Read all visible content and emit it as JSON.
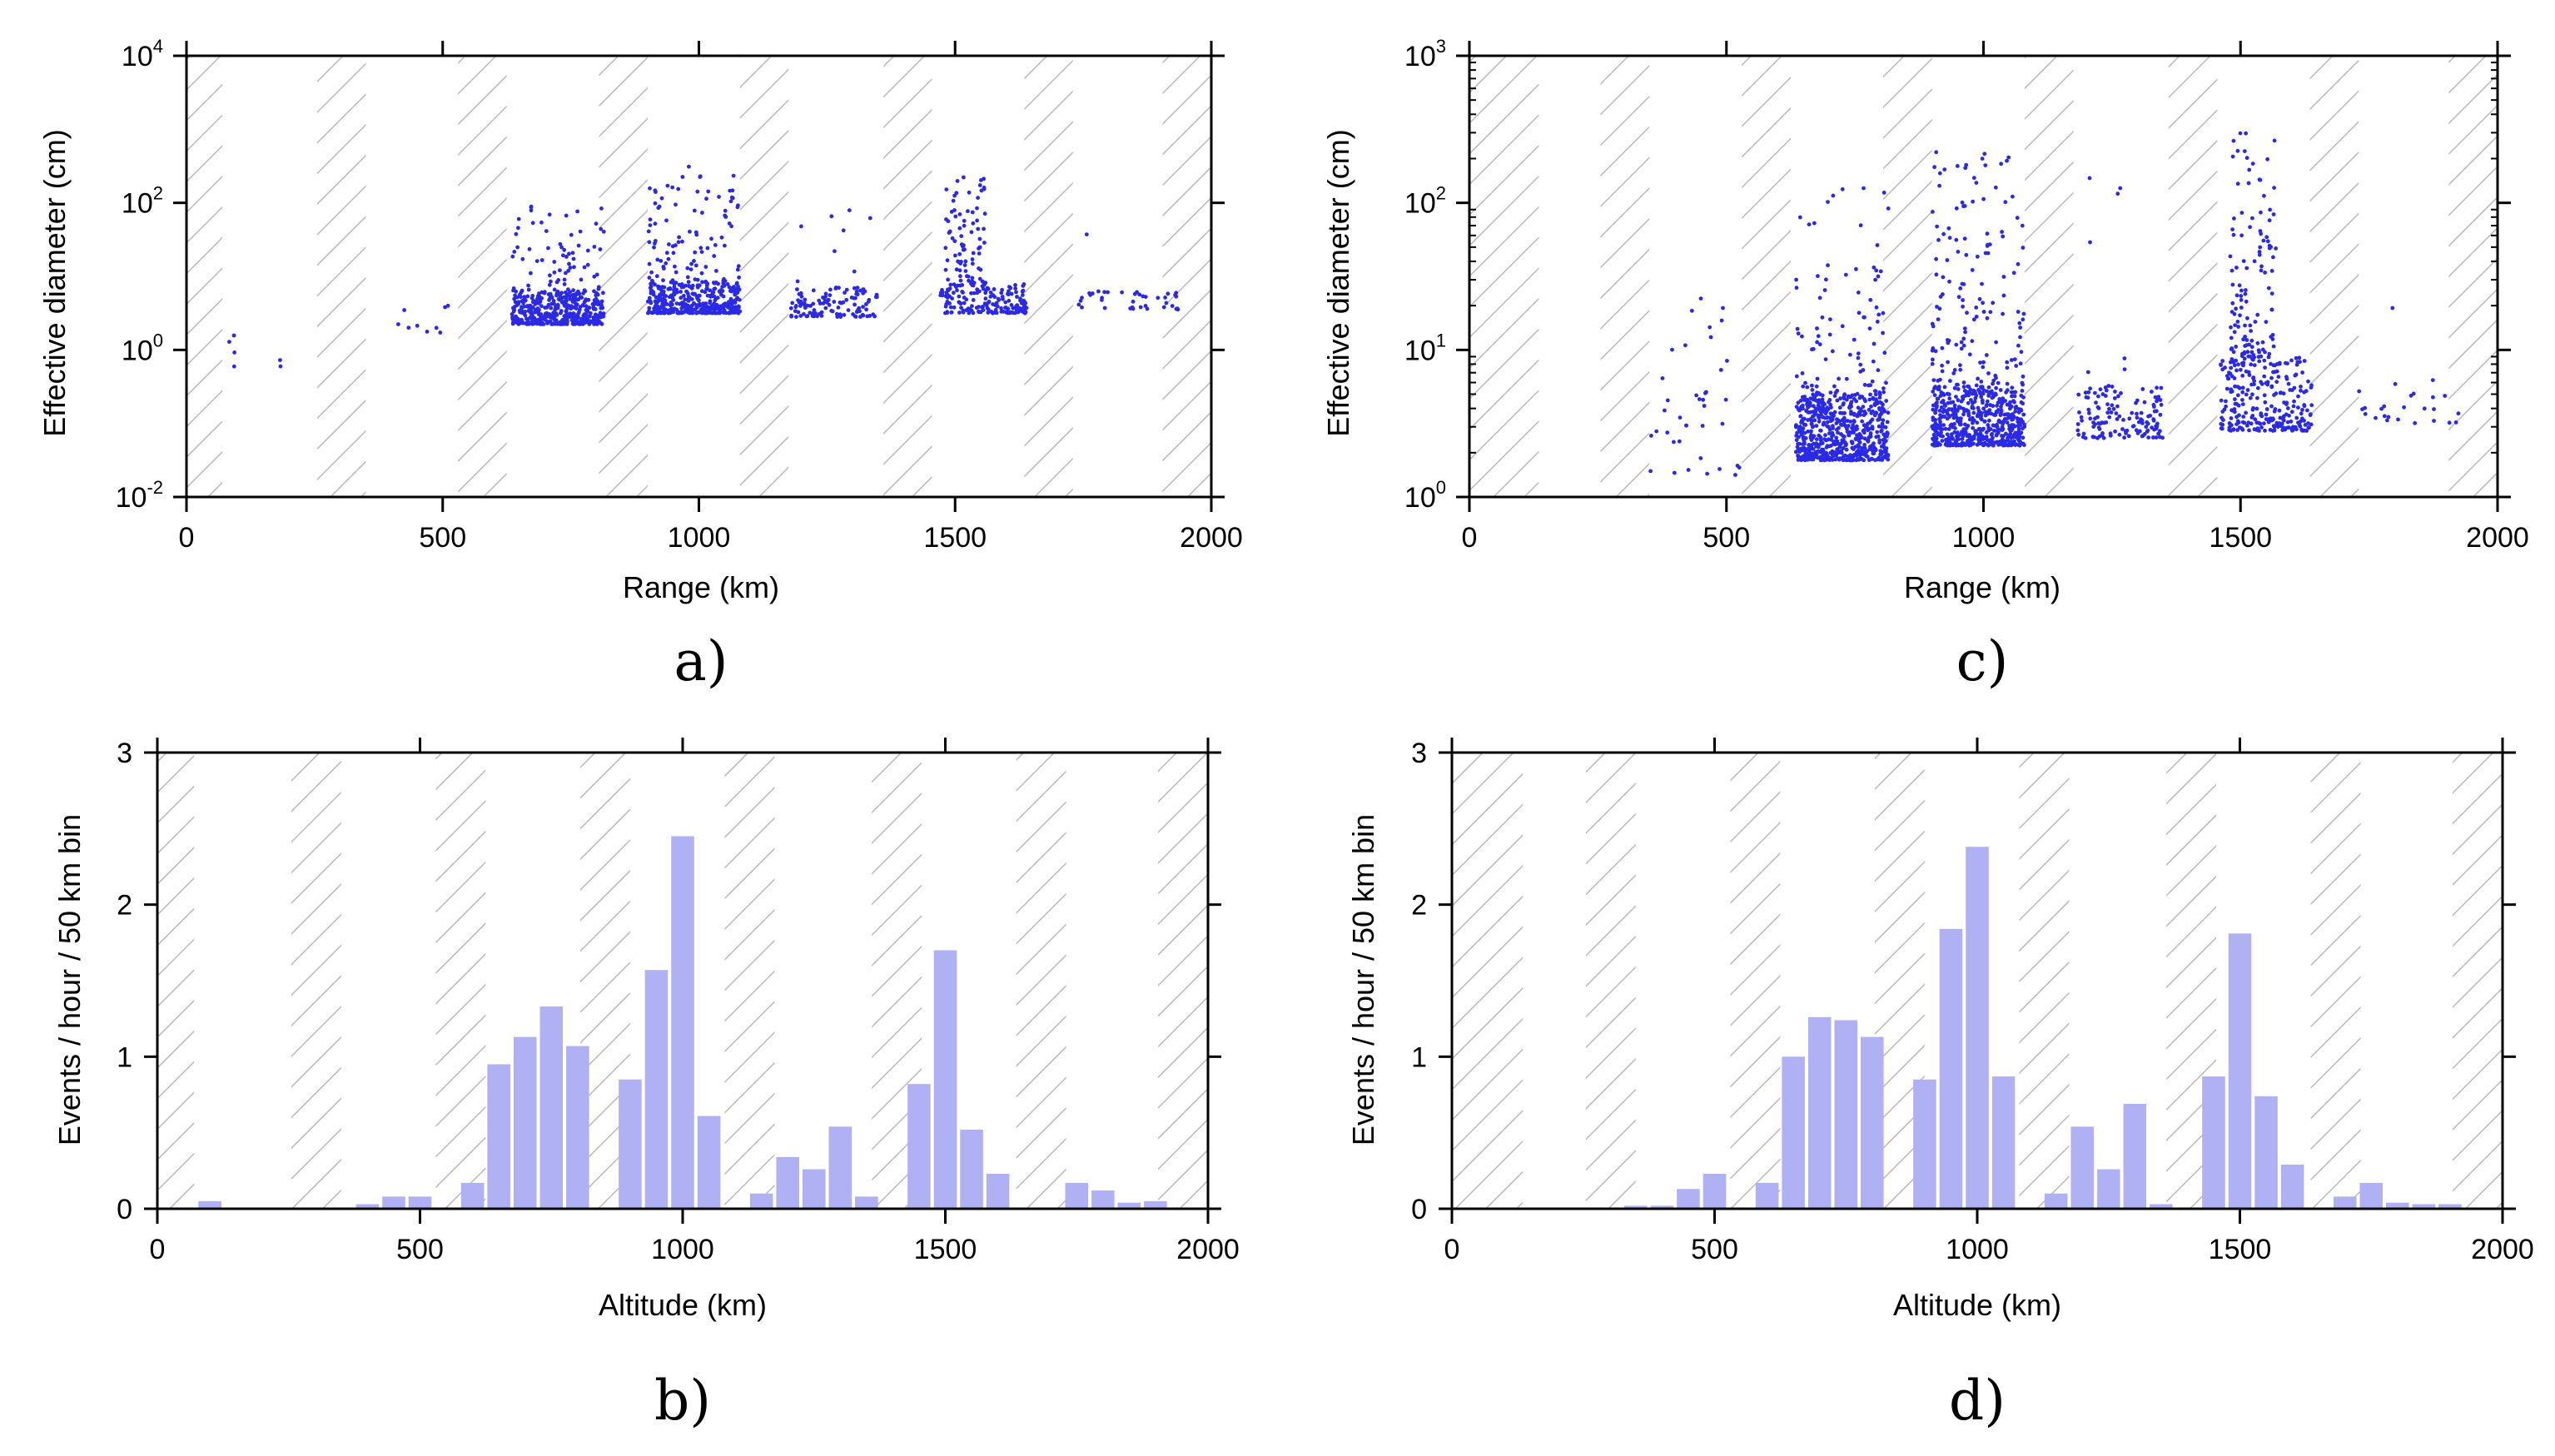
{
  "colors": {
    "scatter": "#2a2ae6",
    "bar": "#b0b0f4",
    "hatch": "#b9b9b9",
    "axis": "#000000"
  },
  "chart_data": [
    {
      "id": "a",
      "panel_label": "a)",
      "type": "scatter",
      "xlabel": "Range (km)",
      "ylabel": "Effective diameter (cm)",
      "xlim": [
        0,
        2000
      ],
      "ylim_log10": [
        -2,
        4
      ],
      "yscale": "log",
      "x_ticks": [
        "0",
        "500",
        "1000",
        "1500",
        "2000"
      ],
      "y_ticks": [
        {
          "base": "10",
          "exp": "-2"
        },
        {
          "base": "10",
          "exp": "0"
        },
        {
          "base": "10",
          "exp": "2"
        },
        {
          "base": "10",
          "exp": "4"
        }
      ],
      "hatched_x_ranges": [
        [
          0,
          70
        ],
        [
          255,
          350
        ],
        [
          530,
          625
        ],
        [
          805,
          900
        ],
        [
          1080,
          1175
        ],
        [
          1360,
          1455
        ],
        [
          1635,
          1730
        ],
        [
          1905,
          2000
        ]
      ],
      "clusters": [
        {
          "x": [
            80,
            100
          ],
          "logy": [
            -0.3,
            0.2
          ],
          "n": 4
        },
        {
          "x": [
            165,
            190
          ],
          "logy": [
            -0.25,
            -0.1
          ],
          "n": 2
        },
        {
          "x": [
            400,
            520
          ],
          "logy": [
            0.2,
            0.7
          ],
          "n": 9
        },
        {
          "x": [
            635,
            815
          ],
          "logy": [
            0.35,
            0.8
          ],
          "n": 420
        },
        {
          "x": [
            635,
            815
          ],
          "logy": [
            0.8,
            2.0
          ],
          "n": 70
        },
        {
          "x": [
            900,
            1080
          ],
          "logy": [
            0.5,
            0.95
          ],
          "n": 380
        },
        {
          "x": [
            900,
            1080
          ],
          "logy": [
            0.95,
            2.5
          ],
          "n": 90
        },
        {
          "x": [
            1180,
            1350
          ],
          "logy": [
            0.45,
            0.85
          ],
          "n": 110
        },
        {
          "x": [
            1180,
            1350
          ],
          "logy": [
            0.85,
            1.9
          ],
          "n": 8
        },
        {
          "x": [
            1470,
            1640
          ],
          "logy": [
            0.5,
            0.9
          ],
          "n": 170
        },
        {
          "x": [
            1480,
            1560
          ],
          "logy": [
            0.9,
            2.4
          ],
          "n": 80
        },
        {
          "x": [
            1740,
            1940
          ],
          "logy": [
            0.55,
            0.8
          ],
          "n": 40
        },
        {
          "x": [
            1750,
            1760
          ],
          "logy": [
            1.5,
            1.7
          ],
          "n": 1
        }
      ]
    },
    {
      "id": "c",
      "panel_label": "c)",
      "type": "scatter",
      "xlabel": "Range (km)",
      "ylabel": "Effective diameter (cm)",
      "xlim": [
        0,
        2000
      ],
      "ylim_log10": [
        0,
        3
      ],
      "yscale": "log",
      "x_ticks": [
        "0",
        "500",
        "1000",
        "1500",
        "2000"
      ],
      "y_ticks": [
        {
          "base": "10",
          "exp": "0"
        },
        {
          "base": "10",
          "exp": "1"
        },
        {
          "base": "10",
          "exp": "2"
        },
        {
          "base": "10",
          "exp": "3"
        }
      ],
      "hatched_x_ranges": [
        [
          0,
          135
        ],
        [
          255,
          350
        ],
        [
          530,
          625
        ],
        [
          805,
          900
        ],
        [
          1080,
          1175
        ],
        [
          1360,
          1455
        ],
        [
          1635,
          1730
        ],
        [
          1905,
          2000
        ]
      ],
      "clusters": [
        {
          "x": [
            350,
            525
          ],
          "logy": [
            0.15,
            1.2
          ],
          "n": 35
        },
        {
          "x": [
            380,
            500
          ],
          "logy": [
            1.2,
            1.8
          ],
          "n": 4
        },
        {
          "x": [
            635,
            815
          ],
          "logy": [
            0.25,
            0.7
          ],
          "n": 620
        },
        {
          "x": [
            635,
            815
          ],
          "logy": [
            0.7,
            2.1
          ],
          "n": 90
        },
        {
          "x": [
            900,
            1080
          ],
          "logy": [
            0.35,
            0.75
          ],
          "n": 560
        },
        {
          "x": [
            900,
            1080
          ],
          "logy": [
            0.75,
            2.35
          ],
          "n": 150
        },
        {
          "x": [
            1180,
            1350
          ],
          "logy": [
            0.4,
            0.75
          ],
          "n": 130
        },
        {
          "x": [
            1200,
            1280
          ],
          "logy": [
            0.75,
            2.3
          ],
          "n": 9
        },
        {
          "x": [
            1460,
            1640
          ],
          "logy": [
            0.45,
            0.95
          ],
          "n": 260
        },
        {
          "x": [
            1480,
            1570
          ],
          "logy": [
            0.95,
            2.5
          ],
          "n": 120
        },
        {
          "x": [
            1730,
            1940
          ],
          "logy": [
            0.5,
            0.8
          ],
          "n": 25
        },
        {
          "x": [
            1780,
            1800
          ],
          "logy": [
            1.2,
            1.3
          ],
          "n": 1
        }
      ]
    },
    {
      "id": "b",
      "panel_label": "b)",
      "type": "bar",
      "xlabel": "Altitude (km)",
      "ylabel": "Events / hour / 50 km bin",
      "xlim": [
        0,
        2000
      ],
      "ylim": [
        0,
        3
      ],
      "bin_width": 50,
      "x_ticks": [
        "0",
        "500",
        "1000",
        "1500",
        "2000"
      ],
      "y_ticks": [
        "0",
        "1",
        "2",
        "3"
      ],
      "hatched_x_ranges": [
        [
          0,
          70
        ],
        [
          255,
          350
        ],
        [
          530,
          625
        ],
        [
          805,
          900
        ],
        [
          1080,
          1175
        ],
        [
          1360,
          1455
        ],
        [
          1635,
          1730
        ],
        [
          1905,
          2000
        ]
      ],
      "bin_starts": [
        75,
        375,
        425,
        475,
        575,
        625,
        675,
        725,
        775,
        875,
        925,
        975,
        1025,
        1125,
        1175,
        1225,
        1275,
        1325,
        1425,
        1475,
        1525,
        1575,
        1725,
        1775,
        1825,
        1875
      ],
      "values": [
        0.05,
        0.03,
        0.08,
        0.08,
        0.17,
        0.95,
        1.13,
        1.33,
        1.07,
        0.85,
        1.57,
        2.45,
        0.61,
        0.1,
        0.34,
        0.26,
        0.54,
        0.08,
        0.82,
        1.7,
        0.52,
        0.23,
        0.17,
        0.12,
        0.04,
        0.05
      ]
    },
    {
      "id": "d",
      "panel_label": "d)",
      "type": "bar",
      "xlabel": "Altitude (km)",
      "ylabel": "Events / hour / 50 km bin",
      "xlim": [
        0,
        2000
      ],
      "ylim": [
        0,
        3
      ],
      "bin_width": 50,
      "x_ticks": [
        "0",
        "500",
        "1000",
        "1500",
        "2000"
      ],
      "y_ticks": [
        "0",
        "1",
        "2",
        "3"
      ],
      "hatched_x_ranges": [
        [
          0,
          135
        ],
        [
          255,
          350
        ],
        [
          530,
          625
        ],
        [
          805,
          900
        ],
        [
          1080,
          1175
        ],
        [
          1360,
          1455
        ],
        [
          1635,
          1730
        ],
        [
          1905,
          2000
        ]
      ],
      "bin_starts": [
        325,
        375,
        425,
        475,
        575,
        625,
        675,
        725,
        775,
        875,
        925,
        975,
        1025,
        1125,
        1175,
        1225,
        1275,
        1325,
        1425,
        1475,
        1525,
        1575,
        1675,
        1725,
        1775,
        1825,
        1875
      ],
      "values": [
        0.02,
        0.02,
        0.13,
        0.23,
        0.17,
        1.0,
        1.26,
        1.24,
        1.13,
        0.85,
        1.84,
        2.38,
        0.87,
        0.1,
        0.54,
        0.26,
        0.69,
        0.03,
        0.87,
        1.81,
        0.74,
        0.29,
        0.08,
        0.17,
        0.04,
        0.03,
        0.03
      ]
    }
  ]
}
